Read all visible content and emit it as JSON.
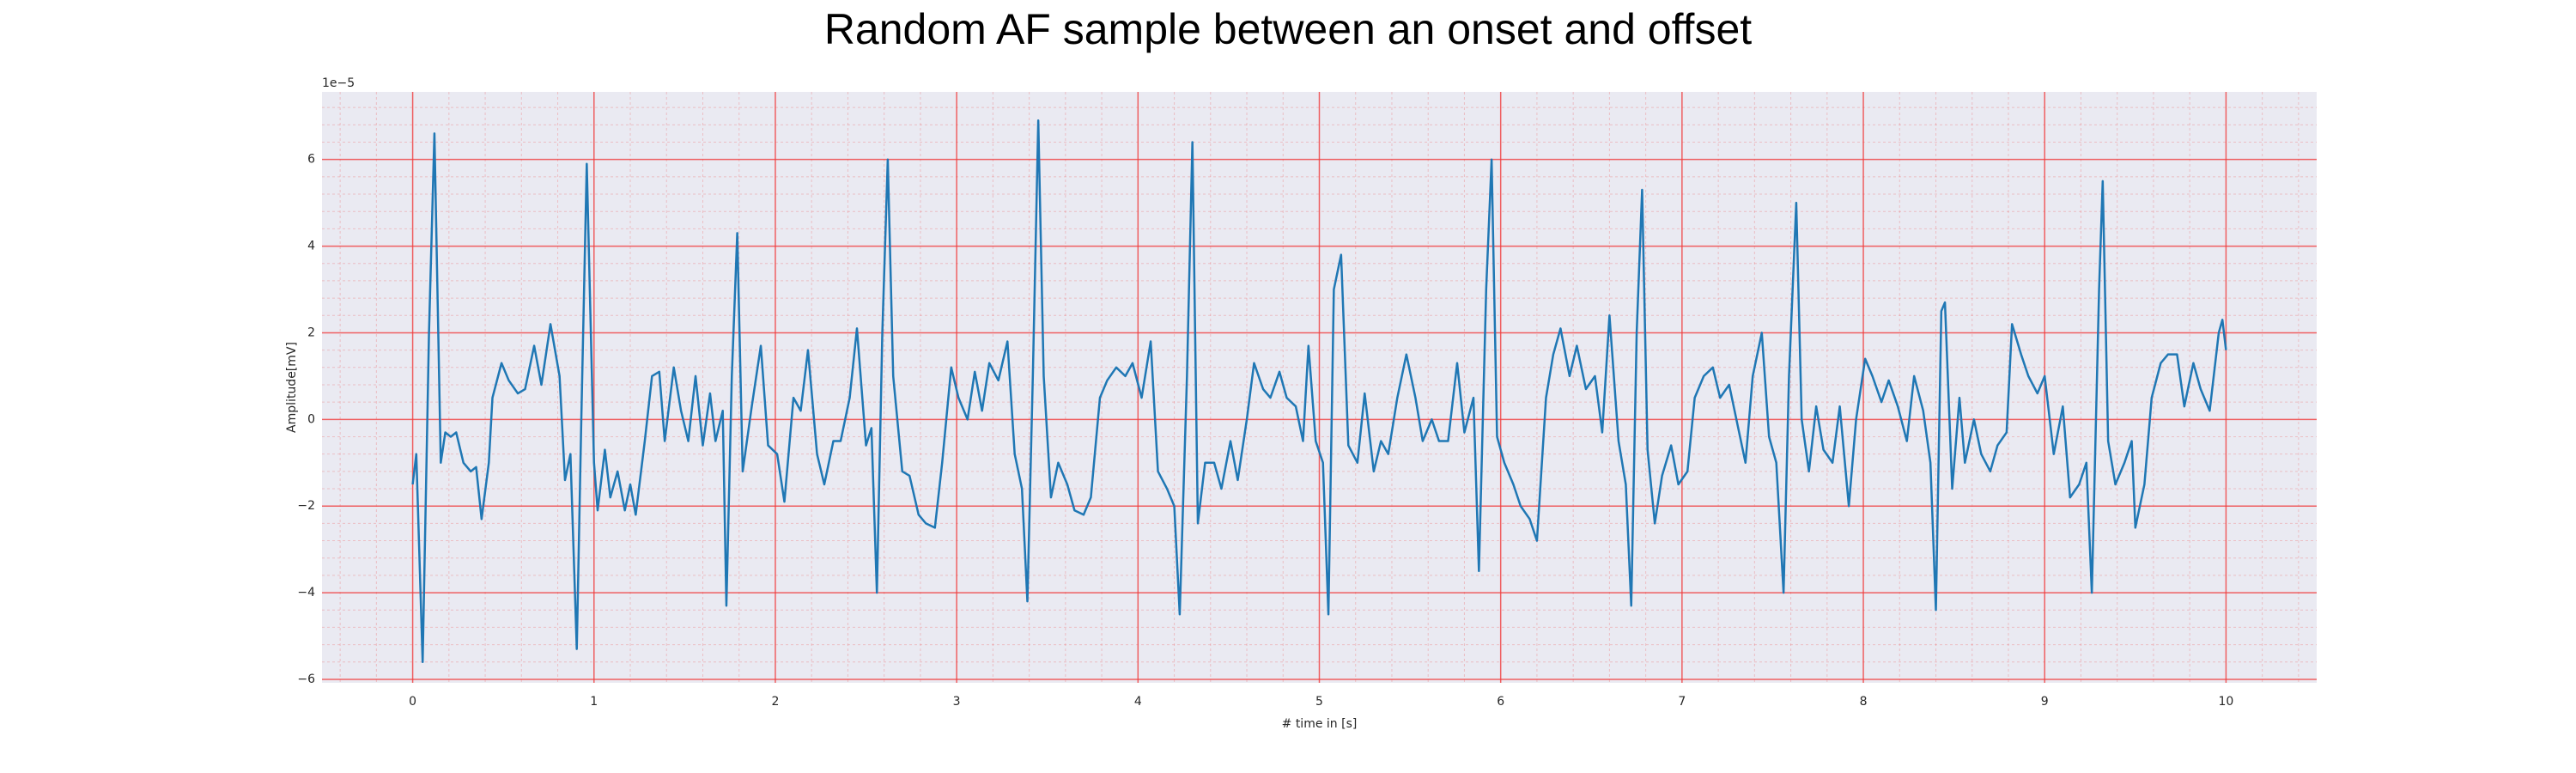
{
  "chart_data": {
    "type": "line",
    "title": "Random AF sample between an onset and offset",
    "x_label": "# time in [s]",
    "y_label": "Amplitude[mV]",
    "y_offset_label": "1e−5",
    "xlim": [
      -0.5,
      10.5
    ],
    "ylim": [
      -6.08,
      7.56
    ],
    "xticks": [
      0,
      1,
      2,
      3,
      4,
      5,
      6,
      7,
      8,
      9,
      10
    ],
    "yticks": [
      {
        "value": -6,
        "label": "−6"
      },
      {
        "value": -4,
        "label": "−4"
      },
      {
        "value": -2,
        "label": "−2"
      },
      0,
      2,
      4,
      6
    ],
    "grid": true,
    "grid_color": "#f03c3c",
    "background": "#eaeaf2",
    "x": [
      0,
      0.02,
      0.055,
      0.09,
      0.12,
      0.155,
      0.18,
      0.21,
      0.24,
      0.28,
      0.32,
      0.35,
      0.38,
      0.42,
      0.44,
      0.49,
      0.53,
      0.58,
      0.62,
      0.67,
      0.71,
      0.76,
      0.81,
      0.84,
      0.87,
      0.905,
      0.93,
      0.96,
      1.0,
      1.02,
      1.06,
      1.09,
      1.13,
      1.17,
      1.2,
      1.23,
      1.28,
      1.32,
      1.36,
      1.39,
      1.44,
      1.48,
      1.52,
      1.56,
      1.6,
      1.64,
      1.67,
      1.71,
      1.73,
      1.76,
      1.79,
      1.82,
      1.87,
      1.92,
      1.96,
      2.01,
      2.05,
      2.1,
      2.14,
      2.18,
      2.23,
      2.27,
      2.32,
      2.36,
      2.41,
      2.45,
      2.5,
      2.53,
      2.56,
      2.59,
      2.62,
      2.65,
      2.7,
      2.74,
      2.79,
      2.83,
      2.88,
      2.92,
      2.97,
      3.01,
      3.06,
      3.1,
      3.14,
      3.18,
      3.23,
      3.28,
      3.32,
      3.36,
      3.39,
      3.42,
      3.45,
      3.48,
      3.52,
      3.56,
      3.61,
      3.65,
      3.7,
      3.74,
      3.79,
      3.83,
      3.88,
      3.93,
      3.97,
      4.02,
      4.07,
      4.11,
      4.16,
      4.2,
      4.23,
      4.27,
      4.3,
      4.33,
      4.37,
      4.42,
      4.46,
      4.51,
      4.55,
      4.6,
      4.64,
      4.69,
      4.73,
      4.78,
      4.82,
      4.87,
      4.91,
      4.94,
      4.98,
      5.02,
      5.05,
      5.08,
      5.12,
      5.16,
      5.21,
      5.25,
      5.3,
      5.34,
      5.38,
      5.43,
      5.48,
      5.53,
      5.57,
      5.62,
      5.66,
      5.71,
      5.76,
      5.8,
      5.85,
      5.88,
      5.92,
      5.95,
      5.98,
      6.02,
      6.07,
      6.11,
      6.16,
      6.2,
      6.25,
      6.29,
      6.33,
      6.38,
      6.42,
      6.47,
      6.52,
      6.56,
      6.6,
      6.65,
      6.69,
      6.72,
      6.75,
      6.78,
      6.81,
      6.85,
      6.89,
      6.94,
      6.98,
      7.03,
      7.07,
      7.12,
      7.17,
      7.21,
      7.26,
      7.3,
      7.35,
      7.39,
      7.44,
      7.48,
      7.52,
      7.56,
      7.59,
      7.63,
      7.66,
      7.7,
      7.74,
      7.78,
      7.83,
      7.87,
      7.92,
      7.96,
      8.01,
      8.05,
      8.1,
      8.14,
      8.19,
      8.24,
      8.28,
      8.33,
      8.37,
      8.4,
      8.43,
      8.45,
      8.49,
      8.53,
      8.56,
      8.61,
      8.65,
      8.7,
      8.74,
      8.79,
      8.82,
      8.87,
      8.91,
      8.96,
      9.0,
      9.05,
      9.1,
      9.14,
      9.19,
      9.23,
      9.26,
      9.3,
      9.32,
      9.35,
      9.39,
      9.44,
      9.48,
      9.5,
      9.55,
      9.59,
      9.64,
      9.68,
      9.73,
      9.77,
      9.82,
      9.86,
      9.91,
      9.96,
      9.98,
      10
    ],
    "series": [
      {
        "color": "#1f77b4",
        "values": [
          -1.5,
          -0.8,
          -5.6,
          2,
          6.6,
          -1,
          -0.3,
          -0.4,
          -0.3,
          -1,
          -1.2,
          -1.1,
          -2.3,
          -1,
          0.5,
          1.3,
          0.9,
          0.6,
          0.7,
          1.7,
          0.8,
          2.2,
          1,
          -1.4,
          -0.8,
          -5.3,
          0,
          5.9,
          -1,
          -2.1,
          -0.7,
          -1.8,
          -1.2,
          -2.1,
          -1.5,
          -2.2,
          -0.5,
          1,
          1.1,
          -0.5,
          1.2,
          0.2,
          -0.5,
          1,
          -0.6,
          0.6,
          -0.5,
          0.2,
          -4.3,
          1,
          4.3,
          -1.2,
          0.3,
          1.7,
          -0.6,
          -0.8,
          -1.9,
          0.5,
          0.2,
          1.6,
          -0.8,
          -1.5,
          -0.5,
          -0.5,
          0.5,
          2.1,
          -0.6,
          -0.2,
          -4,
          2,
          6,
          1,
          -1.2,
          -1.3,
          -2.2,
          -2.4,
          -2.5,
          -1,
          1.2,
          0.5,
          0,
          1.1,
          0.2,
          1.3,
          0.9,
          1.8,
          -0.8,
          -1.6,
          -4.2,
          1,
          6.9,
          1,
          -1.8,
          -1,
          -1.5,
          -2.1,
          -2.2,
          -1.8,
          0.5,
          0.9,
          1.2,
          1,
          1.3,
          0.5,
          1.8,
          -1.2,
          -1.6,
          -2,
          -4.5,
          1,
          6.4,
          -2.4,
          -1,
          -1,
          -1.6,
          -0.5,
          -1.4,
          0,
          1.3,
          0.7,
          0.5,
          1.1,
          0.5,
          0.3,
          -0.5,
          1.7,
          -0.5,
          -1,
          -4.5,
          3,
          3.8,
          -0.6,
          -1,
          0.6,
          -1.2,
          -0.5,
          -0.8,
          0.5,
          1.5,
          0.5,
          -0.5,
          0,
          -0.5,
          -0.5,
          1.3,
          -0.3,
          0.5,
          -3.5,
          3,
          6,
          -0.4,
          -1,
          -1.5,
          -2,
          -2.3,
          -2.8,
          0.5,
          1.5,
          2.1,
          1,
          1.7,
          0.7,
          1,
          -0.3,
          2.4,
          -0.5,
          -1.5,
          -4.3,
          2,
          5.3,
          -0.7,
          -2.4,
          -1.3,
          -0.6,
          -1.5,
          -1.2,
          0.5,
          1,
          1.2,
          0.5,
          0.8,
          0,
          -1,
          1,
          2,
          -0.4,
          -1,
          -4,
          1,
          5,
          0,
          -1.2,
          0.3,
          -0.7,
          -1,
          0.3,
          -2,
          0,
          1.4,
          1,
          0.4,
          0.9,
          0.3,
          -0.5,
          1,
          0.2,
          -1,
          -4.4,
          2.5,
          2.7,
          -1.6,
          0.5,
          -1,
          0,
          -0.8,
          -1.2,
          -0.6,
          -0.3,
          2.2,
          1.5,
          1,
          0.6,
          1,
          -0.8,
          0.3,
          -1.8,
          -1.5,
          -1,
          -4,
          3,
          5.5,
          -0.5,
          -1.5,
          -1,
          -0.5,
          -2.5,
          -1.5,
          0.5,
          1.3,
          1.5,
          1.5,
          0.3,
          1.3,
          0.7,
          0.2,
          2,
          2.3,
          1.6
        ]
      }
    ]
  }
}
